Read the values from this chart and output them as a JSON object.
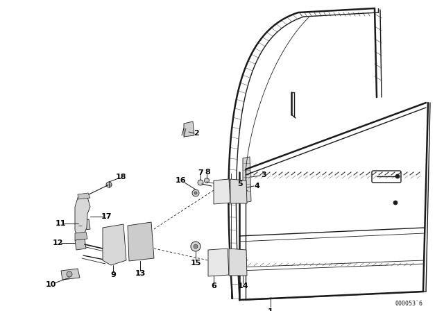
{
  "bg_color": "#ffffff",
  "line_color": "#1a1a1a",
  "diagram_code": "000053`6",
  "fig_width": 6.4,
  "fig_height": 4.48,
  "dpi": 100
}
